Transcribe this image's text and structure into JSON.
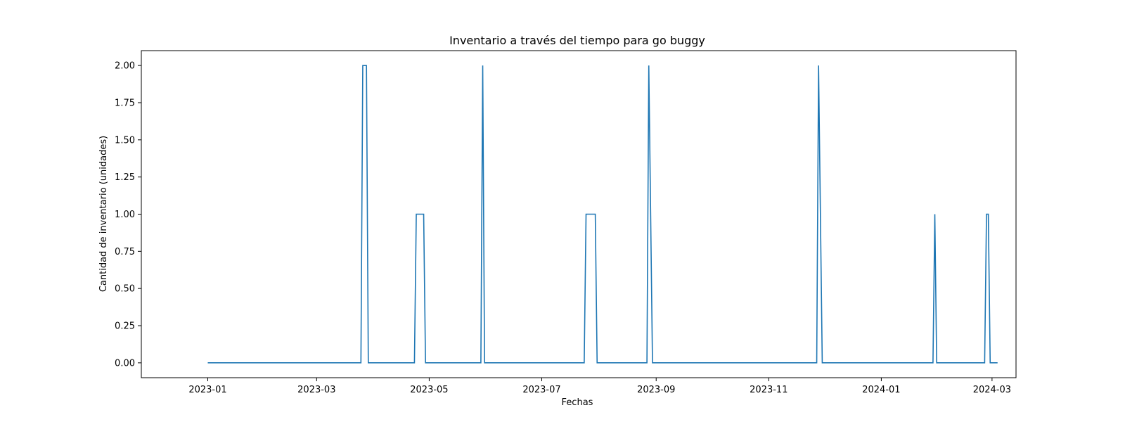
{
  "chart_data": {
    "type": "line",
    "title": "Inventario a través del tiempo para go buggy",
    "xlabel": "Fechas",
    "ylabel": "Cantidad de inventario (unidades)",
    "ylim": [
      -0.1,
      2.1
    ],
    "xlim": [
      "2022-11-26",
      "2024-03-14"
    ],
    "x_ticks": [
      "2023-01",
      "2023-03",
      "2023-05",
      "2023-07",
      "2023-09",
      "2023-11",
      "2024-01",
      "2024-03"
    ],
    "y_ticks": [
      "0.00",
      "0.25",
      "0.50",
      "0.75",
      "1.00",
      "1.25",
      "1.50",
      "1.75",
      "2.00"
    ],
    "grid": false,
    "color": "#1f77b4",
    "series": [
      {
        "x": [
          "2023-01-01",
          "2023-03-25",
          "2023-03-26",
          "2023-03-28",
          "2023-03-29",
          "2023-04-23",
          "2023-04-24",
          "2023-04-28",
          "2023-04-29",
          "2023-05-29",
          "2023-05-30",
          "2023-05-31",
          "2023-07-24",
          "2023-07-25",
          "2023-07-30",
          "2023-07-31",
          "2023-08-27",
          "2023-08-28",
          "2023-08-30",
          "2023-11-27",
          "2023-11-28",
          "2023-11-30",
          "2024-01-29",
          "2024-01-30",
          "2024-01-31",
          "2024-02-26",
          "2024-02-27",
          "2024-02-28",
          "2024-02-29",
          "2024-03-04"
        ],
        "y": [
          0,
          0,
          2,
          2,
          0,
          0,
          1,
          1,
          0,
          0,
          2,
          0,
          0,
          1,
          1,
          0,
          0,
          2,
          0,
          0,
          2,
          0,
          0,
          1,
          0,
          0,
          1,
          1,
          0,
          0
        ]
      }
    ]
  }
}
